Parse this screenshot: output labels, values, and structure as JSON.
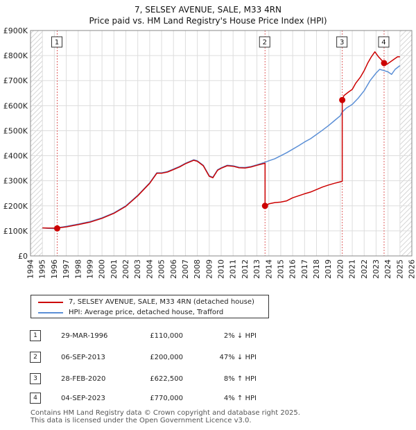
{
  "title": {
    "line1": "7, SELSEY AVENUE, SALE, M33 4RN",
    "line2": "Price paid vs. HM Land Registry's House Price Index (HPI)"
  },
  "chart_data": {
    "type": "line",
    "title": "7, SELSEY AVENUE, SALE, M33 4RN — Price paid vs. HM Land Registry's House Price Index (HPI)",
    "xlabel": "",
    "ylabel": "",
    "xlim": [
      1994,
      2026
    ],
    "ylim": [
      0,
      900000
    ],
    "x_ticks": [
      1994,
      1995,
      1996,
      1997,
      1998,
      1999,
      2000,
      2001,
      2002,
      2003,
      2004,
      2005,
      2006,
      2007,
      2008,
      2009,
      2010,
      2011,
      2012,
      2013,
      2014,
      2015,
      2016,
      2017,
      2018,
      2019,
      2020,
      2021,
      2022,
      2023,
      2024,
      2025,
      2026
    ],
    "y_ticks": [
      0,
      100000,
      200000,
      300000,
      400000,
      500000,
      600000,
      700000,
      800000,
      900000
    ],
    "y_tick_labels": [
      "£0",
      "£100K",
      "£200K",
      "£300K",
      "£400K",
      "£500K",
      "£600K",
      "£700K",
      "£800K",
      "£900K"
    ],
    "grid": true,
    "hatched_regions": [
      [
        1994,
        1995.0
      ],
      [
        2025.0,
        2026
      ]
    ],
    "series": [
      {
        "name": "7, SELSEY AVENUE, SALE, M33 4RN (detached house)",
        "color": "#cc0000",
        "points": [
          [
            1995.0,
            112000
          ],
          [
            1995.5,
            111000
          ],
          [
            1996.0,
            111000
          ],
          [
            1996.24,
            110000
          ],
          [
            1996.5,
            113000
          ],
          [
            1997.0,
            116000
          ],
          [
            1998.0,
            125000
          ],
          [
            1999.0,
            135000
          ],
          [
            2000.0,
            150000
          ],
          [
            2001.0,
            170000
          ],
          [
            2002.0,
            198000
          ],
          [
            2003.0,
            240000
          ],
          [
            2004.0,
            290000
          ],
          [
            2004.6,
            330000
          ],
          [
            2005.0,
            330000
          ],
          [
            2005.5,
            335000
          ],
          [
            2006.0,
            345000
          ],
          [
            2006.5,
            355000
          ],
          [
            2007.0,
            368000
          ],
          [
            2007.7,
            382000
          ],
          [
            2008.0,
            378000
          ],
          [
            2008.5,
            360000
          ],
          [
            2009.0,
            318000
          ],
          [
            2009.3,
            312000
          ],
          [
            2009.7,
            342000
          ],
          [
            2010.0,
            350000
          ],
          [
            2010.5,
            360000
          ],
          [
            2011.0,
            358000
          ],
          [
            2011.5,
            352000
          ],
          [
            2012.0,
            351000
          ],
          [
            2012.5,
            355000
          ],
          [
            2013.0,
            362000
          ],
          [
            2013.5,
            368000
          ],
          [
            2013.68,
            370000
          ],
          [
            2013.68,
            200000
          ],
          [
            2014.0,
            208000
          ],
          [
            2014.5,
            213000
          ],
          [
            2015.0,
            215000
          ],
          [
            2015.5,
            220000
          ],
          [
            2016.0,
            232000
          ],
          [
            2016.5,
            240000
          ],
          [
            2017.0,
            248000
          ],
          [
            2017.5,
            255000
          ],
          [
            2018.0,
            265000
          ],
          [
            2018.5,
            275000
          ],
          [
            2019.0,
            283000
          ],
          [
            2019.5,
            290000
          ],
          [
            2020.0,
            296000
          ],
          [
            2020.16,
            298000
          ],
          [
            2020.16,
            622500
          ],
          [
            2020.3,
            640000
          ],
          [
            2020.7,
            655000
          ],
          [
            2021.0,
            665000
          ],
          [
            2021.3,
            690000
          ],
          [
            2021.7,
            715000
          ],
          [
            2022.0,
            740000
          ],
          [
            2022.3,
            770000
          ],
          [
            2022.6,
            795000
          ],
          [
            2022.9,
            815000
          ],
          [
            2023.2,
            795000
          ],
          [
            2023.5,
            780000
          ],
          [
            2023.67,
            770000
          ],
          [
            2023.9,
            765000
          ],
          [
            2024.2,
            775000
          ],
          [
            2024.5,
            785000
          ],
          [
            2024.8,
            795000
          ],
          [
            2025.0,
            795000
          ]
        ]
      },
      {
        "name": "HPI: Average price, detached house, Trafford",
        "color": "#5b8fd6",
        "points": [
          [
            1995.0,
            112000
          ],
          [
            1995.5,
            110000
          ],
          [
            1996.0,
            109000
          ],
          [
            1996.24,
            112000
          ],
          [
            1996.5,
            114000
          ],
          [
            1997.0,
            118000
          ],
          [
            1998.0,
            127000
          ],
          [
            1999.0,
            137000
          ],
          [
            2000.0,
            152000
          ],
          [
            2001.0,
            172000
          ],
          [
            2002.0,
            200000
          ],
          [
            2003.0,
            242000
          ],
          [
            2004.0,
            292000
          ],
          [
            2004.6,
            332000
          ],
          [
            2005.0,
            332000
          ],
          [
            2005.5,
            337000
          ],
          [
            2006.0,
            347000
          ],
          [
            2006.5,
            357000
          ],
          [
            2007.0,
            370000
          ],
          [
            2007.7,
            384000
          ],
          [
            2008.0,
            380000
          ],
          [
            2008.5,
            362000
          ],
          [
            2009.0,
            320000
          ],
          [
            2009.3,
            314000
          ],
          [
            2009.7,
            344000
          ],
          [
            2010.0,
            352000
          ],
          [
            2010.5,
            362000
          ],
          [
            2011.0,
            360000
          ],
          [
            2011.5,
            354000
          ],
          [
            2012.0,
            353000
          ],
          [
            2012.5,
            357000
          ],
          [
            2013.0,
            364000
          ],
          [
            2013.68,
            374000
          ],
          [
            2014.0,
            380000
          ],
          [
            2014.5,
            388000
          ],
          [
            2015.0,
            400000
          ],
          [
            2015.5,
            412000
          ],
          [
            2016.0,
            426000
          ],
          [
            2016.5,
            440000
          ],
          [
            2017.0,
            455000
          ],
          [
            2017.5,
            468000
          ],
          [
            2018.0,
            485000
          ],
          [
            2018.5,
            502000
          ],
          [
            2019.0,
            520000
          ],
          [
            2019.5,
            540000
          ],
          [
            2020.0,
            560000
          ],
          [
            2020.16,
            575000
          ],
          [
            2020.5,
            590000
          ],
          [
            2021.0,
            605000
          ],
          [
            2021.5,
            630000
          ],
          [
            2022.0,
            660000
          ],
          [
            2022.5,
            700000
          ],
          [
            2023.0,
            730000
          ],
          [
            2023.3,
            745000
          ],
          [
            2023.67,
            740000
          ],
          [
            2024.0,
            735000
          ],
          [
            2024.3,
            725000
          ],
          [
            2024.6,
            745000
          ],
          [
            2025.0,
            760000
          ]
        ]
      }
    ],
    "transactions": [
      {
        "num": "1",
        "x": 1996.24,
        "price": 110000
      },
      {
        "num": "2",
        "x": 2013.68,
        "price": 200000
      },
      {
        "num": "3",
        "x": 2020.16,
        "price": 622500
      },
      {
        "num": "4",
        "x": 2023.67,
        "price": 770000
      }
    ]
  },
  "legend": {
    "items": [
      {
        "label": "7, SELSEY AVENUE, SALE, M33 4RN (detached house)",
        "color": "#cc0000"
      },
      {
        "label": "HPI: Average price, detached house, Trafford",
        "color": "#5b8fd6"
      }
    ]
  },
  "table": {
    "rows": [
      {
        "num": "1",
        "date": "29-MAR-1996",
        "price": "£110,000",
        "hpi": "2% ↓ HPI"
      },
      {
        "num": "2",
        "date": "06-SEP-2013",
        "price": "£200,000",
        "hpi": "47% ↓ HPI"
      },
      {
        "num": "3",
        "date": "28-FEB-2020",
        "price": "£622,500",
        "hpi": "8% ↑ HPI"
      },
      {
        "num": "4",
        "date": "04-SEP-2023",
        "price": "£770,000",
        "hpi": "4% ↑ HPI"
      }
    ]
  },
  "footer": {
    "line1": "Contains HM Land Registry data © Crown copyright and database right 2025.",
    "line2": "This data is licensed under the Open Government Licence v3.0."
  }
}
